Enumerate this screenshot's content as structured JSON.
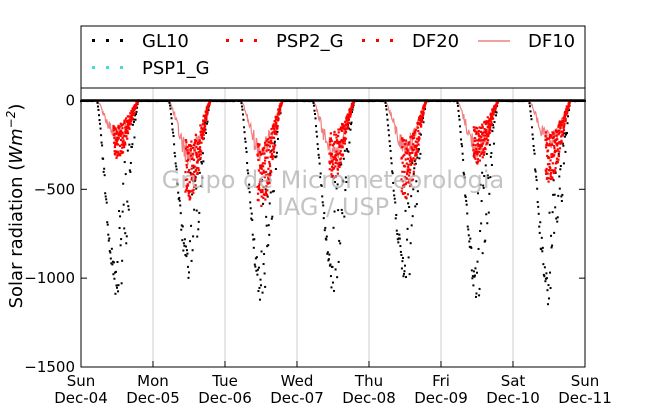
{
  "chart_data": {
    "type": "scatter",
    "ylabel_prefix": "Solar radiation (",
    "ylabel_unit_main": "Wm",
    "ylabel_unit_exp": "−2",
    "ylabel_suffix": ")",
    "ylim": [
      -1500,
      70
    ],
    "y_ticks": [
      0,
      -500,
      -1000,
      -1500
    ],
    "y_tick_labels": [
      "0",
      "−500",
      "−1000",
      "−1500"
    ],
    "xlim": [
      0,
      7
    ],
    "x_ticks": [
      {
        "x": 0,
        "day": "Sun",
        "date": "Dec-04"
      },
      {
        "x": 1,
        "day": "Mon",
        "date": "Dec-05"
      },
      {
        "x": 2,
        "day": "Tue",
        "date": "Dec-06"
      },
      {
        "x": 3,
        "day": "Wed",
        "date": "Dec-07"
      },
      {
        "x": 4,
        "day": "Thu",
        "date": "Dec-08"
      },
      {
        "x": 5,
        "day": "Fri",
        "date": "Dec-09"
      },
      {
        "x": 6,
        "day": "Sat",
        "date": "Dec-10"
      },
      {
        "x": 7,
        "day": "Sun",
        "date": "Dec-11"
      }
    ],
    "grid": "vertical",
    "legend_placement": "top",
    "series": [
      {
        "name": "GL10",
        "color": "#000000",
        "marker": "dot",
        "daily_peak": [
          -1120,
          -1010,
          -1140,
          -1080,
          -1050,
          -1130,
          -1180
        ]
      },
      {
        "name": "PSP2_G",
        "color": "#ff0000",
        "marker": "dot",
        "daily_peak": [
          -330,
          -560,
          -600,
          -440,
          -560,
          -360,
          -460
        ]
      },
      {
        "name": "DF20",
        "color": "#ff0000",
        "marker": "dot",
        "daily_peak": [
          -330,
          -560,
          -600,
          -440,
          -560,
          -360,
          -460
        ]
      },
      {
        "name": "DF10",
        "color": "#f08080",
        "marker": "line",
        "daily_peak": [
          -200,
          -300,
          -280,
          -290,
          -260,
          -260,
          -230
        ]
      },
      {
        "name": "PSP1_G",
        "color": "#40e0d0",
        "marker": "dot",
        "daily_peak": []
      }
    ],
    "watermark_lines": [
      "Grupo de Micrometeorologia",
      "IAG / USP"
    ]
  }
}
